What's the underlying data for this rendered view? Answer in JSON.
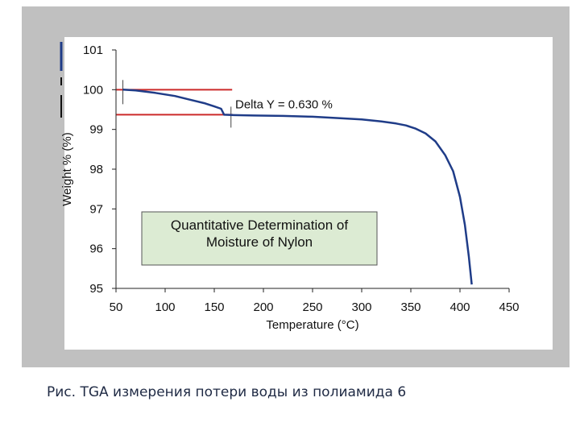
{
  "caption": "Рис. TGA измерения потери воды из полиамида 6",
  "chart_data": {
    "type": "line",
    "title": "",
    "xlabel": "Temperature (°C)",
    "ylabel": "Weight % (%)",
    "xlim": [
      50,
      450
    ],
    "ylim": [
      95,
      101
    ],
    "x_ticks": [
      50,
      100,
      150,
      200,
      250,
      300,
      350,
      400,
      450
    ],
    "y_ticks": [
      95,
      96,
      97,
      98,
      99,
      100,
      101
    ],
    "grid": false,
    "series": [
      {
        "color": "#1f3c88",
        "x": [
          57,
          70,
          90,
          110,
          125,
          140,
          150,
          157,
          160,
          170,
          190,
          220,
          250,
          280,
          300,
          320,
          335,
          345,
          355,
          365,
          375,
          385,
          393,
          400,
          405,
          409,
          412
        ],
        "y": [
          100.0,
          99.98,
          99.92,
          99.84,
          99.75,
          99.66,
          99.58,
          99.52,
          99.37,
          99.36,
          99.35,
          99.34,
          99.32,
          99.28,
          99.25,
          99.2,
          99.15,
          99.1,
          99.02,
          98.9,
          98.7,
          98.35,
          97.95,
          97.3,
          96.6,
          95.8,
          95.1
        ]
      }
    ],
    "annotations": {
      "delta_label": "Delta Y = 0.630 %",
      "box_text": [
        "Quantitative Determination of",
        "Moisture of Nylon"
      ],
      "box_color": "#dcebd3",
      "marker_color": "#cc2a2a",
      "upper_level": 100.0,
      "lower_level": 99.37,
      "marker_x_start": 57,
      "marker_x_end": 167
    }
  }
}
